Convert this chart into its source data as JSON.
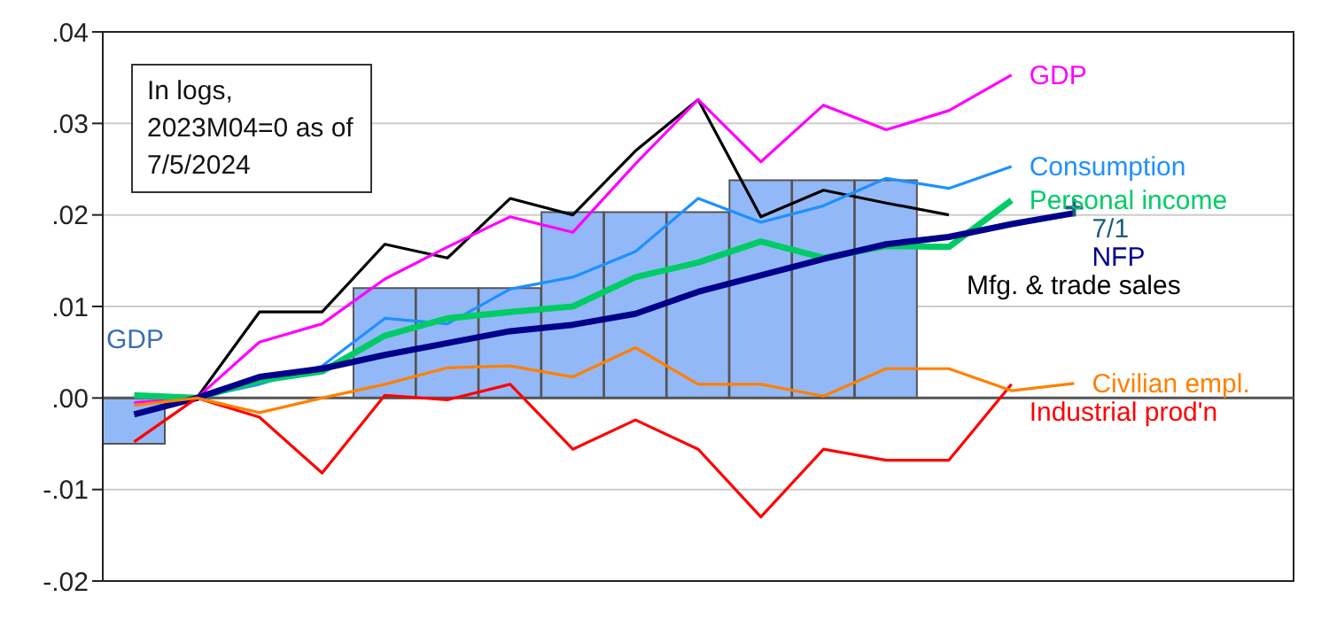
{
  "chart_data": {
    "type": "line",
    "annotations": [
      "In logs, 2023M04=0 as of 7/5/2024"
    ],
    "categories": [
      null,
      null,
      null,
      null,
      null,
      null,
      null,
      null,
      null,
      null,
      null,
      null,
      null,
      null,
      null,
      null,
      null,
      null,
      null
    ],
    "tick_labels": "y",
    "ylim": [
      -0.02,
      0.04
    ],
    "yticks": [
      {
        "value": -0.02,
        "label": "-.02"
      },
      {
        "value": -0.01,
        "label": "-.01"
      },
      {
        "value": 0,
        "label": ".00"
      },
      {
        "value": 0.01,
        "label": ".01"
      },
      {
        "value": 0.02,
        "label": ".02"
      },
      {
        "value": 0.03,
        "label": ".03"
      },
      {
        "value": 0.04,
        "label": ".04"
      }
    ],
    "grid": "y",
    "legend": false,
    "marker": "none",
    "ref_lines": [
      {
        "axis": "y",
        "value": 0,
        "color": "#555555"
      }
    ],
    "series": [
      {
        "type": "bar",
        "name": "GDP",
        "color": "#93b8f8",
        "values": [
          -0.005,
          0,
          0,
          0,
          0.012,
          0.012,
          0.012,
          0.0203,
          0.0203,
          0.0203,
          0.0238,
          0.0238,
          0.0238,
          null,
          null,
          null,
          null,
          null,
          null
        ]
      },
      {
        "name": "Mfg. & trade sales",
        "color": "#000000",
        "values": [
          null,
          0,
          0.0094,
          0.0094,
          0.0168,
          0.0153,
          0.0218,
          0.02,
          0.027,
          0.0326,
          0.0198,
          0.0227,
          0.0213,
          0.02,
          null,
          null,
          null,
          null,
          null
        ]
      },
      {
        "name": "GDP",
        "color": "#ff00ff",
        "values": [
          -0.0005,
          0,
          0.0061,
          0.0081,
          0.013,
          0.0165,
          0.0198,
          0.0181,
          0.0256,
          0.0326,
          0.0258,
          0.032,
          0.0293,
          0.0314,
          0.0353,
          null,
          null,
          null,
          null
        ]
      },
      {
        "name": "Consumption",
        "color": "#1e90ff",
        "values": [
          null,
          0,
          0.0015,
          0.0035,
          0.0087,
          0.0081,
          0.0119,
          0.0132,
          0.016,
          0.0218,
          0.0192,
          0.021,
          0.024,
          0.0229,
          0.0253,
          null,
          null,
          null,
          null
        ]
      },
      {
        "name": "Personal income",
        "color": "#00cc66",
        "values": [
          0.0003,
          0,
          0.0019,
          0.0029,
          0.0068,
          0.0087,
          0.0094,
          0.01,
          0.0132,
          0.0148,
          0.0171,
          0.0153,
          0.0166,
          0.0165,
          0.0216,
          null,
          null,
          null,
          null
        ]
      },
      {
        "name": "NFP",
        "color": "#00008b",
        "values": [
          -0.0018,
          0,
          0.0023,
          0.0032,
          0.0047,
          0.006,
          0.0073,
          0.008,
          0.0092,
          0.0116,
          0.0134,
          0.0152,
          0.0168,
          0.0176,
          0.019,
          0.0202,
          null,
          null,
          null
        ]
      },
      {
        "type": "scatter",
        "marker": "cross",
        "name": "7/1",
        "color": "#1a5f7a",
        "values": [
          null,
          null,
          null,
          null,
          null,
          null,
          null,
          null,
          null,
          null,
          null,
          null,
          null,
          null,
          null,
          0.0208,
          null,
          null,
          null
        ]
      },
      {
        "name": "Industrial prod'n",
        "color": "#ff0000",
        "values": [
          -0.0048,
          0,
          -0.0021,
          -0.0082,
          0.0003,
          -0.0002,
          0.0015,
          -0.0056,
          -0.0024,
          -0.0056,
          -0.013,
          -0.0056,
          -0.0068,
          -0.0068,
          0.0015,
          null,
          null,
          null,
          null
        ]
      },
      {
        "name": "Civilian empl.",
        "color": "#ff8000",
        "values": [
          -0.0008,
          0,
          -0.0016,
          0,
          0.0015,
          0.0033,
          0.0035,
          0.0023,
          0.0055,
          0.0015,
          0.0015,
          0.0002,
          0.0032,
          0.0032,
          0.0008,
          0.0016,
          null,
          null,
          null
        ]
      }
    ]
  }
}
